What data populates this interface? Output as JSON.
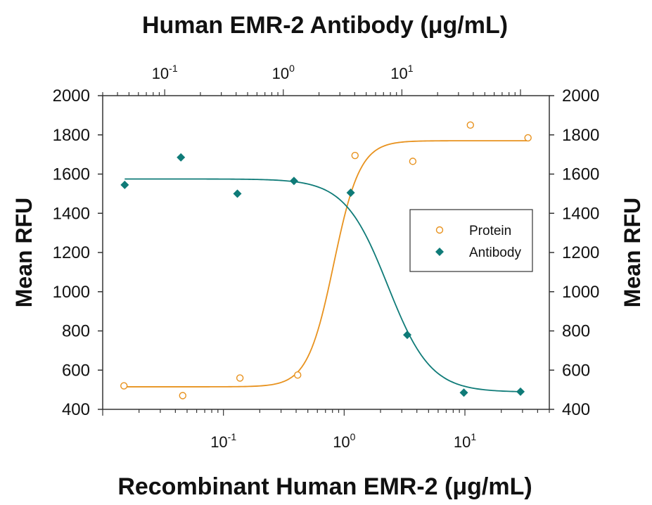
{
  "chart_data": {
    "type": "scatter",
    "title": "",
    "xlabel": "Recombinant Human EMR-2 (μg/mL)",
    "x2label": "Human EMR-2 Antibody (μg/mL)",
    "ylabel": "Mean RFU",
    "y2label": "Mean RFU",
    "xscale": "log",
    "x_ticks": [
      {
        "base": "10",
        "exp": "-1",
        "value": 0.1
      },
      {
        "base": "10",
        "exp": "0",
        "value": 1
      },
      {
        "base": "10",
        "exp": "1",
        "value": 10
      }
    ],
    "x2_ticks": [
      {
        "base": "10",
        "exp": "-1",
        "value": 0.1
      },
      {
        "base": "10",
        "exp": "0",
        "value": 1
      },
      {
        "base": "10",
        "exp": "1",
        "value": 10
      }
    ],
    "xlim": [
      0.01,
      50
    ],
    "x2lim": [
      0.03,
      175
    ],
    "ylim": [
      400,
      2000
    ],
    "y_ticks": [
      "2000",
      "1800",
      "1600",
      "1400",
      "1200",
      "1000",
      "800",
      "600",
      "400"
    ],
    "y_tick_values": [
      2000,
      1800,
      1600,
      1400,
      1200,
      1000,
      800,
      600,
      400
    ],
    "grid": false,
    "legend": {
      "position": "right",
      "entries": [
        "Protein",
        "Antibody"
      ]
    },
    "series": [
      {
        "name": "Protein",
        "axis": "bottom",
        "marker": "open-circle",
        "color": "#E8921E",
        "x": [
          0.015,
          0.046,
          0.137,
          0.412,
          1.23,
          3.7,
          11.1,
          33.3
        ],
        "y": [
          520,
          470,
          560,
          575,
          1695,
          1665,
          1850,
          1785
        ],
        "fit": {
          "bottom": 515,
          "top": 1770,
          "ec50": 0.82,
          "hill": 4.0
        }
      },
      {
        "name": "Antibody",
        "axis": "top",
        "marker": "filled-diamond",
        "color": "#0F7B78",
        "x": [
          0.046,
          0.137,
          0.41,
          1.23,
          3.7,
          11.1,
          33.3,
          100
        ],
        "y": [
          1545,
          1685,
          1500,
          1565,
          1505,
          780,
          485,
          490
        ],
        "fit": {
          "bottom": 488,
          "top": 1575,
          "ec50": 7.6,
          "hill": -2.4
        }
      }
    ]
  }
}
